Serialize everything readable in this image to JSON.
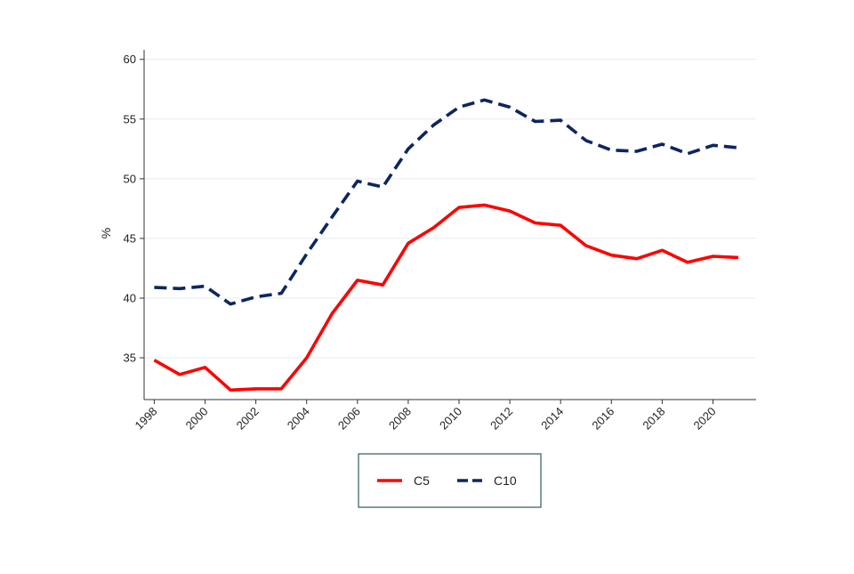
{
  "chart_data": {
    "type": "line",
    "title": "",
    "xlabel": "",
    "ylabel": "%",
    "x": [
      1998,
      1999,
      2000,
      2001,
      2002,
      2003,
      2004,
      2005,
      2006,
      2007,
      2008,
      2009,
      2010,
      2011,
      2012,
      2013,
      2014,
      2015,
      2016,
      2017,
      2018,
      2019,
      2020,
      2021
    ],
    "xticks": [
      "1998",
      "2000",
      "2002",
      "2004",
      "2006",
      "2008",
      "2010",
      "2012",
      "2014",
      "2016",
      "2018",
      "2020"
    ],
    "yticks": [
      "35",
      "40",
      "45",
      "50",
      "55",
      "60"
    ],
    "ylim": [
      31.5,
      60.8
    ],
    "xlim": [
      1997.6,
      2021.7
    ],
    "grid": true,
    "legend_position": "bottom",
    "series": [
      {
        "name": "C5",
        "color": "#ff0000",
        "style": "solid",
        "values": [
          34.8,
          33.6,
          34.2,
          32.3,
          32.4,
          32.4,
          35.0,
          38.7,
          41.5,
          41.1,
          44.6,
          45.9,
          47.6,
          47.8,
          47.3,
          46.3,
          46.1,
          44.4,
          43.6,
          43.3,
          44.0,
          43.0,
          43.5,
          43.4
        ]
      },
      {
        "name": "C10",
        "color": "#0d2660",
        "style": "dashed",
        "values": [
          40.9,
          40.8,
          41.0,
          39.5,
          40.1,
          40.4,
          43.7,
          46.8,
          49.8,
          49.3,
          52.5,
          54.5,
          56.0,
          56.6,
          56.0,
          54.8,
          54.9,
          53.2,
          52.4,
          52.3,
          52.9,
          52.1,
          52.8,
          52.6
        ]
      }
    ]
  }
}
